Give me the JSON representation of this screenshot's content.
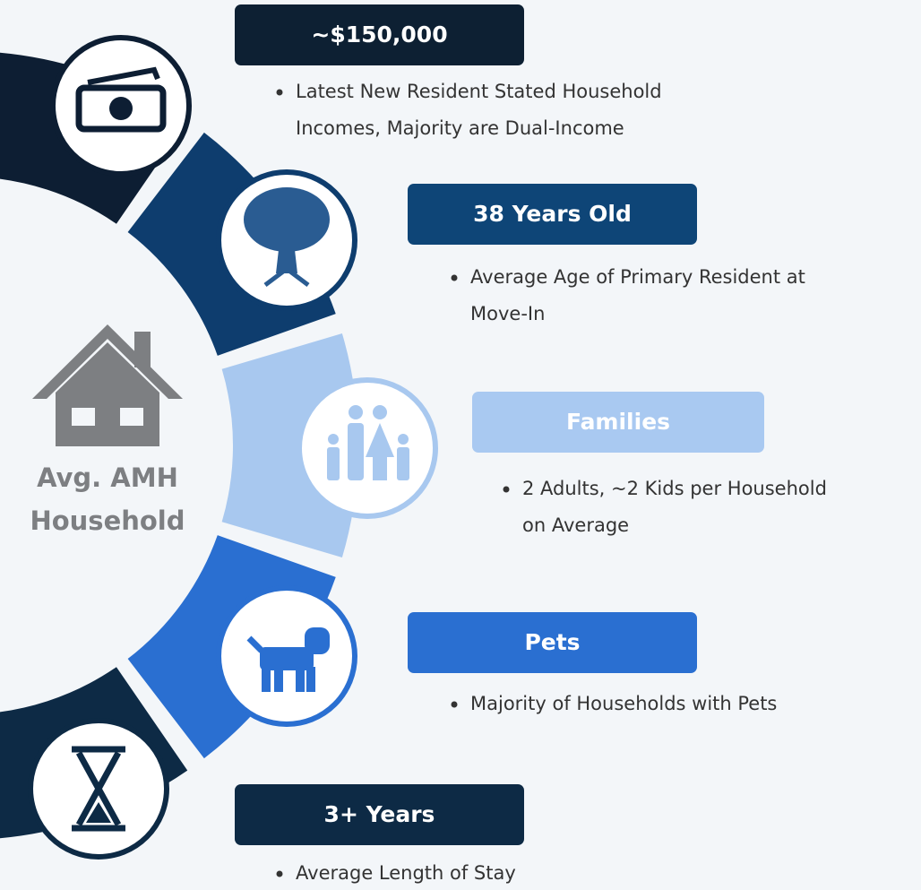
{
  "center_label": [
    "Avg. AMH",
    "Household"
  ],
  "items": [
    {
      "headline": "~$150,000",
      "bullet": [
        "Latest New Resident Stated Household",
        "Incomes, Majority are Dual-Income"
      ]
    },
    {
      "headline": "38 Years Old",
      "bullet": [
        "Average Age of Primary Resident at",
        "Move-In"
      ]
    },
    {
      "headline": "Families",
      "bullet": [
        "2 Adults, ~2 Kids per Household",
        "on Average"
      ]
    },
    {
      "headline": "Pets",
      "bullet": [
        "Majority of Households with Pets"
      ]
    },
    {
      "headline": "3+ Years",
      "bullet": [
        "Average Length of Stay"
      ]
    }
  ]
}
